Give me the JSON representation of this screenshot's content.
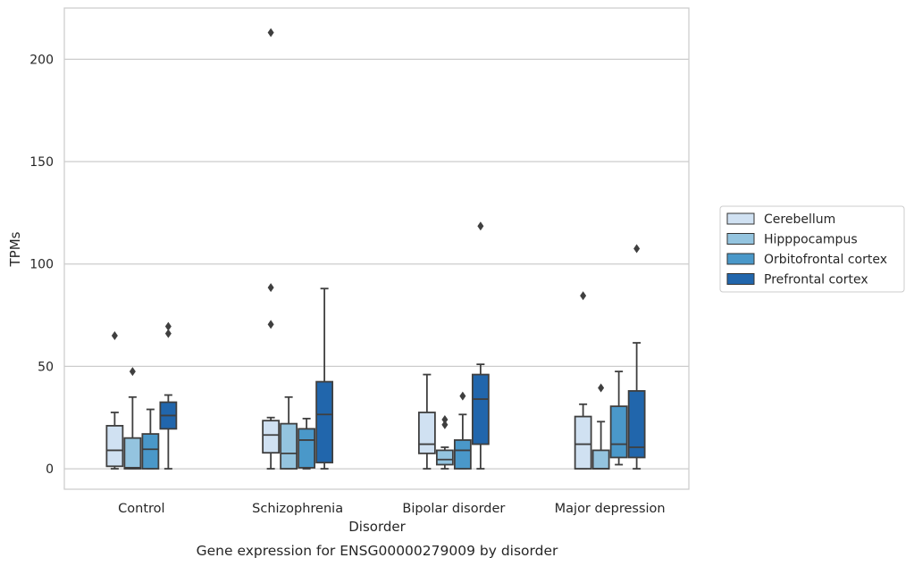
{
  "chart_data": {
    "type": "box",
    "caption": "Gene expression for ENSG00000279009 by disorder",
    "xlabel": "Disorder",
    "ylabel": "TPMs",
    "ylim": [
      -10,
      225
    ],
    "yticks": [
      0,
      50,
      100,
      150,
      200
    ],
    "grid": "horizontal",
    "legend_position": "right",
    "categories": [
      "Control",
      "Schizophrenia",
      "Bipolar disorder",
      "Major depression"
    ],
    "series": [
      {
        "name": "Cerebellum",
        "color": "#d0e1f2",
        "boxes": [
          {
            "whislo": 0,
            "q1": 1.2,
            "med": 9,
            "q3": 21,
            "whishi": 27.5,
            "fliers": [
              65
            ]
          },
          {
            "whislo": 0,
            "q1": 7.8,
            "med": 16.5,
            "q3": 23.5,
            "whishi": 25,
            "fliers": [
              88.5,
              70.5,
              213
            ]
          },
          {
            "whislo": 0,
            "q1": 7.5,
            "med": 12,
            "q3": 27.5,
            "whishi": 46,
            "fliers": []
          },
          {
            "whislo": 0,
            "q1": 0,
            "med": 12,
            "q3": 25.5,
            "whishi": 31.5,
            "fliers": [
              84.5
            ]
          }
        ]
      },
      {
        "name": "Hipppocampus",
        "color": "#94c4df",
        "boxes": [
          {
            "whislo": 0,
            "q1": 0,
            "med": 0.5,
            "q3": 15,
            "whishi": 35,
            "fliers": [
              47.5
            ]
          },
          {
            "whislo": 0,
            "q1": 0,
            "med": 7.5,
            "q3": 22,
            "whishi": 35,
            "fliers": []
          },
          {
            "whislo": 0,
            "q1": 2,
            "med": 4.5,
            "q3": 9,
            "whishi": 10.5,
            "fliers": [
              21.5,
              24
            ]
          },
          {
            "whislo": 0,
            "q1": 0,
            "med": 0,
            "q3": 9,
            "whishi": 23,
            "fliers": [
              39.5
            ]
          }
        ]
      },
      {
        "name": "Orbitofrontal cortex",
        "color": "#4a98c9",
        "boxes": [
          {
            "whislo": 0,
            "q1": 0,
            "med": 9.5,
            "q3": 17,
            "whishi": 29,
            "fliers": []
          },
          {
            "whislo": 0,
            "q1": 0.5,
            "med": 14,
            "q3": 19.5,
            "whishi": 24.5,
            "fliers": []
          },
          {
            "whislo": 0,
            "q1": 0,
            "med": 9,
            "q3": 14,
            "whishi": 26.5,
            "fliers": [
              35.5
            ]
          },
          {
            "whislo": 2,
            "q1": 5.5,
            "med": 12,
            "q3": 30.5,
            "whishi": 47.5,
            "fliers": []
          }
        ]
      },
      {
        "name": "Prefrontal cortex",
        "color": "#2166ac",
        "boxes": [
          {
            "whislo": 0,
            "q1": 19.5,
            "med": 26,
            "q3": 32.5,
            "whishi": 36,
            "fliers": [
              66,
              69.5
            ]
          },
          {
            "whislo": 0,
            "q1": 3,
            "med": 26.5,
            "q3": 42.5,
            "whishi": 88,
            "fliers": []
          },
          {
            "whislo": 0,
            "q1": 12,
            "med": 34,
            "q3": 46,
            "whishi": 51,
            "fliers": [
              118.5
            ]
          },
          {
            "whislo": 0,
            "q1": 5.5,
            "med": 10.5,
            "q3": 38,
            "whishi": 61.5,
            "fliers": [
              107.5
            ]
          }
        ]
      }
    ]
  }
}
